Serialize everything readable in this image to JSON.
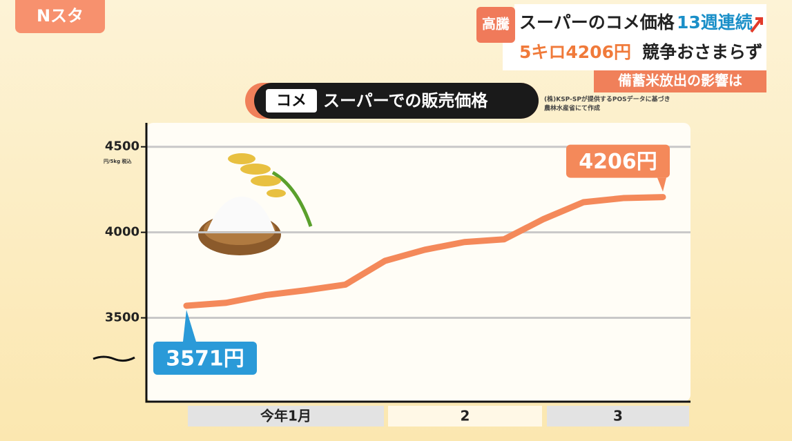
{
  "logo": "Nスタ",
  "headline": {
    "tag": "高騰",
    "line1": "スーパーのコメ価格",
    "line1_accent": "13週連続",
    "line2_accent": "5キロ4206円",
    "line2": "競争おさまらず",
    "sub": "備蓄米放出の影響は"
  },
  "chart_data": {
    "type": "line",
    "title_tag": "コメ",
    "title": "スーパーでの販売価格",
    "source": [
      "(株)KSP-SPが提供するPOSデータに基づき",
      "農林水産省にて作成"
    ],
    "y_unit": "円/5kg 税込",
    "categories": [
      null,
      null,
      null,
      null,
      null,
      null,
      null,
      null,
      null,
      null,
      null,
      null,
      null
    ],
    "x_bands": [
      "今年1月",
      "2",
      "3"
    ],
    "series": [
      {
        "name": null,
        "color": "#f4895a",
        "values": [
          3571,
          3588,
          3633,
          3661,
          3694,
          3833,
          3898,
          3943,
          3959,
          4078,
          4176,
          4200,
          4206
        ],
        "value_labels": [
          "3571円",
          null,
          null,
          null,
          null,
          null,
          null,
          null,
          null,
          null,
          null,
          null,
          "4206円"
        ]
      }
    ],
    "ylim": [
      3010,
      4640
    ],
    "yticks": [
      4500,
      4000,
      3500
    ],
    "grid": true
  }
}
